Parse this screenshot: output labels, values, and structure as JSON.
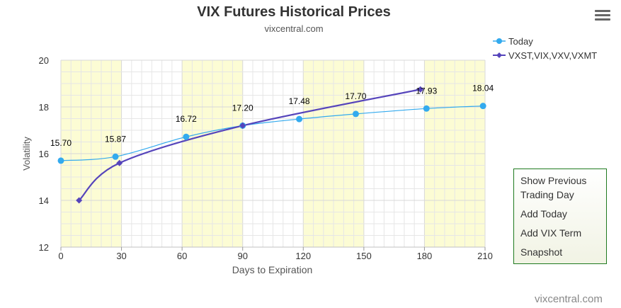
{
  "title": "VIX Futures Historical Prices",
  "subtitle": "vixcentral.com",
  "credits": "vixcentral.com",
  "menu_icon": "hamburger-menu-icon",
  "context_menu": [
    {
      "label": "Show Previous Trading Day"
    },
    {
      "label": "Add Today"
    },
    {
      "label": "Add VIX Term"
    },
    {
      "label": "Snapshot"
    }
  ],
  "colors": {
    "today": "#33aaee",
    "vix_term": "#5544bb",
    "band": "#fcfcd4",
    "grid": "#e6e6e6"
  },
  "chart_data": {
    "type": "line",
    "title": "VIX Futures Historical Prices",
    "subtitle": "vixcentral.com",
    "xlabel": "Days to Expiration",
    "ylabel": "Volatility",
    "xlim": [
      0,
      210
    ],
    "ylim": [
      12,
      20
    ],
    "xticks": [
      0,
      30,
      60,
      90,
      120,
      150,
      180,
      210
    ],
    "yticks": [
      12,
      14,
      16,
      18,
      20
    ],
    "grid": true,
    "legend_position": "top-right",
    "highlight_bands": [
      [
        0,
        30
      ],
      [
        60,
        90
      ],
      [
        120,
        150
      ],
      [
        180,
        210
      ]
    ],
    "series": [
      {
        "name": "Today",
        "marker": "circle",
        "data_labels": true,
        "points": [
          {
            "x": 0,
            "y": 15.7,
            "label": "15.70"
          },
          {
            "x": 27,
            "y": 15.87,
            "label": "15.87"
          },
          {
            "x": 62,
            "y": 16.72,
            "label": "16.72"
          },
          {
            "x": 90,
            "y": 17.2,
            "label": "17.20"
          },
          {
            "x": 118,
            "y": 17.48,
            "label": "17.48"
          },
          {
            "x": 146,
            "y": 17.7,
            "label": "17.70"
          },
          {
            "x": 181,
            "y": 17.93,
            "label": "17.93"
          },
          {
            "x": 209,
            "y": 18.04,
            "label": "18.04"
          }
        ]
      },
      {
        "name": "VXST,VIX,VXV,VXMT",
        "marker": "diamond",
        "data_labels": false,
        "points": [
          {
            "x": 9,
            "y": 14.0
          },
          {
            "x": 29,
            "y": 15.6
          },
          {
            "x": 90,
            "y": 17.2
          },
          {
            "x": 178,
            "y": 18.75
          }
        ]
      }
    ]
  }
}
